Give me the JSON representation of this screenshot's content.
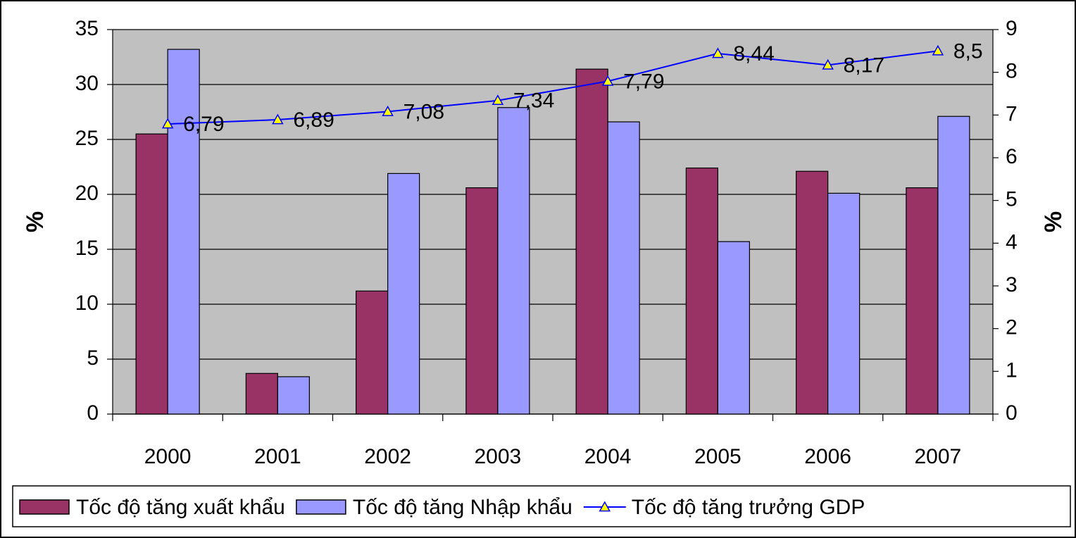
{
  "chart_data": {
    "type": "bar",
    "categories": [
      "2000",
      "2001",
      "2002",
      "2003",
      "2004",
      "2005",
      "2006",
      "2007"
    ],
    "ylabel": "%",
    "y2label": "%",
    "ylim": [
      0,
      35
    ],
    "yticks": [
      0,
      5,
      10,
      15,
      20,
      25,
      30,
      35
    ],
    "y2lim": [
      0,
      9
    ],
    "y2ticks": [
      0,
      1,
      2,
      3,
      4,
      5,
      6,
      7,
      8,
      9
    ],
    "grid": true,
    "legend": "bottom",
    "series": [
      {
        "name": "Tốc độ tăng xuất khẩu",
        "type": "bar",
        "color": "#993366",
        "values": [
          25.5,
          3.7,
          11.2,
          20.6,
          31.4,
          22.4,
          22.1,
          20.6
        ]
      },
      {
        "name": "Tốc độ tăng Nhập khẩu",
        "type": "bar",
        "color": "#9999ff",
        "values": [
          33.2,
          3.4,
          21.9,
          27.9,
          26.6,
          15.7,
          20.1,
          27.1
        ]
      },
      {
        "name": "Tốc độ tăng trưởng GDP",
        "type": "line",
        "axis": "y2",
        "color": "#0000ff",
        "marker_color": "#ffff00",
        "values": [
          6.79,
          6.89,
          7.08,
          7.34,
          7.79,
          8.44,
          8.17,
          8.5
        ],
        "value_labels": [
          "6,79",
          "6,89",
          "7,08",
          "7,34",
          "7,79",
          "8,44",
          "8,17",
          "8,5"
        ]
      }
    ]
  }
}
